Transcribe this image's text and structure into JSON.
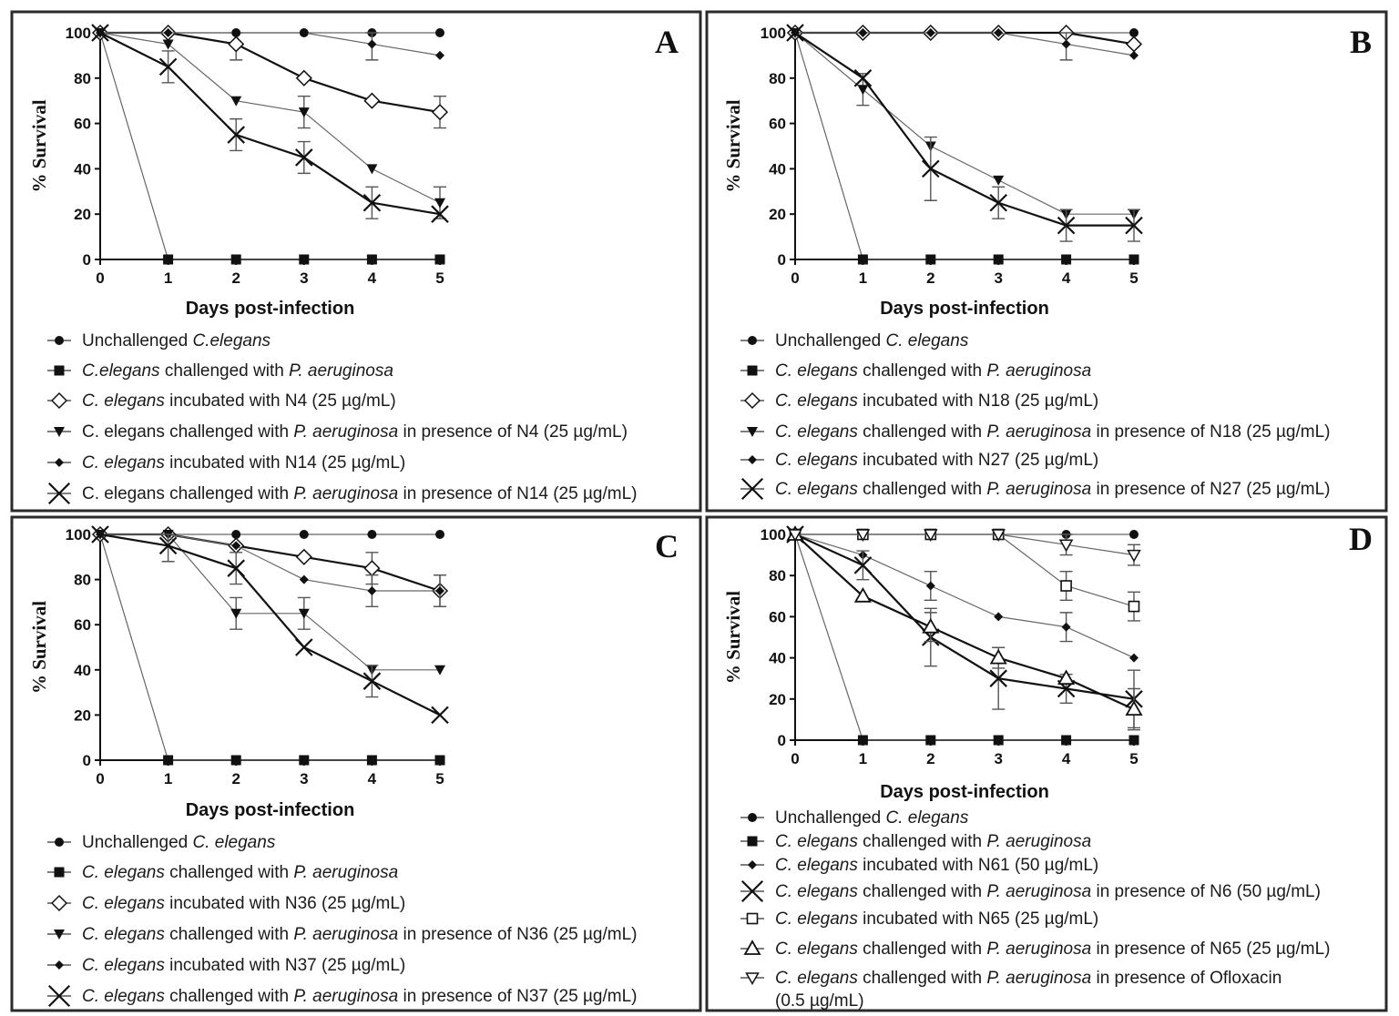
{
  "chart_data": [
    {
      "panel": "A",
      "type": "line",
      "xlabel": "Days post-infection",
      "ylabel": "% Survival",
      "xlim": [
        0,
        5
      ],
      "ylim": [
        0,
        100
      ],
      "xticks": [
        0,
        1,
        2,
        3,
        4,
        5
      ],
      "yticks": [
        0,
        20,
        40,
        60,
        80,
        100
      ],
      "legend_placement": "below",
      "x": [
        0,
        1,
        2,
        3,
        4,
        5
      ],
      "series": [
        {
          "marker": "circle",
          "weight": "thin",
          "label": [
            {
              "t": "Unchallenged "
            },
            {
              "t": "C.elegans",
              "i": true
            }
          ],
          "values": [
            100,
            100,
            100,
            100,
            100,
            100
          ],
          "err": [
            0,
            0,
            0,
            0,
            0,
            0
          ]
        },
        {
          "marker": "square",
          "weight": "thin",
          "label": [
            {
              "t": "C.elegans",
              "i": true
            },
            {
              "t": " challenged with "
            },
            {
              "t": "P. aeruginosa",
              "i": true
            }
          ],
          "values": [
            100,
            0,
            0,
            0,
            0,
            0
          ],
          "err": [
            0,
            0,
            0,
            0,
            0,
            0
          ]
        },
        {
          "marker": "diamond-open",
          "weight": "thick",
          "label": [
            {
              "t": "C. elegans",
              "i": true
            },
            {
              "t": " incubated with N4 (25 µg/mL)"
            }
          ],
          "values": [
            100,
            100,
            95,
            80,
            70,
            65
          ],
          "err": [
            0,
            0,
            7,
            0,
            0,
            7
          ]
        },
        {
          "marker": "triangle-down",
          "weight": "thin",
          "label": [
            {
              "t": "C. elegans challenged with "
            },
            {
              "t": "P. aeruginosa",
              "i": true
            },
            {
              "t": " in presence of N4 (25 µg/mL)"
            }
          ],
          "values": [
            100,
            95,
            70,
            65,
            40,
            25
          ],
          "err": [
            0,
            0,
            0,
            7,
            0,
            7
          ]
        },
        {
          "marker": "diamond",
          "weight": "thin",
          "label": [
            {
              "t": "C. elegans",
              "i": true
            },
            {
              "t": " incubated with N14 (25 µg/mL)"
            }
          ],
          "values": [
            100,
            100,
            100,
            100,
            95,
            90
          ],
          "err": [
            0,
            0,
            0,
            0,
            7,
            0
          ]
        },
        {
          "marker": "x",
          "weight": "thick",
          "label": [
            {
              "t": "C. elegans challenged with "
            },
            {
              "t": "P. aeruginosa",
              "i": true
            },
            {
              "t": " in presence of N14 (25 µg/mL)"
            }
          ],
          "values": [
            100,
            85,
            55,
            45,
            25,
            20
          ],
          "err": [
            0,
            7,
            7,
            7,
            7,
            0
          ]
        }
      ]
    },
    {
      "panel": "B",
      "type": "line",
      "xlabel": "Days post-infection",
      "ylabel": "% Survival",
      "xlim": [
        0,
        5
      ],
      "ylim": [
        0,
        100
      ],
      "xticks": [
        0,
        1,
        2,
        3,
        4,
        5
      ],
      "yticks": [
        0,
        20,
        40,
        60,
        80,
        100
      ],
      "legend_placement": "below",
      "x": [
        0,
        1,
        2,
        3,
        4,
        5
      ],
      "series": [
        {
          "marker": "circle",
          "weight": "thin",
          "label": [
            {
              "t": "Unchallenged "
            },
            {
              "t": "C. elegans",
              "i": true
            }
          ],
          "values": [
            100,
            100,
            100,
            100,
            100,
            100
          ],
          "err": [
            0,
            0,
            0,
            0,
            0,
            0
          ]
        },
        {
          "marker": "square",
          "weight": "thin",
          "label": [
            {
              "t": "C. elegans",
              "i": true
            },
            {
              "t": " challenged with "
            },
            {
              "t": "P. aeruginosa",
              "i": true
            }
          ],
          "values": [
            100,
            0,
            0,
            0,
            0,
            0
          ],
          "err": [
            0,
            0,
            0,
            0,
            0,
            0
          ]
        },
        {
          "marker": "diamond-open",
          "weight": "thick",
          "label": [
            {
              "t": "C. elegans",
              "i": true
            },
            {
              "t": " incubated with N18 (25 µg/mL)"
            }
          ],
          "values": [
            100,
            100,
            100,
            100,
            100,
            95
          ],
          "err": [
            0,
            0,
            0,
            0,
            0,
            0
          ]
        },
        {
          "marker": "triangle-down",
          "weight": "thin",
          "label": [
            {
              "t": "C. elegans",
              "i": true
            },
            {
              "t": " challenged with "
            },
            {
              "t": "P. aeruginosa",
              "i": true
            },
            {
              "t": " in presence of N18 (25 µg/mL)"
            }
          ],
          "values": [
            100,
            75,
            50,
            35,
            20,
            20
          ],
          "err": [
            0,
            7,
            0,
            0,
            0,
            0
          ]
        },
        {
          "marker": "diamond",
          "weight": "thin",
          "label": [
            {
              "t": "C. elegans",
              "i": true
            },
            {
              "t": " incubated with N27 (25 µg/mL)"
            }
          ],
          "values": [
            100,
            100,
            100,
            100,
            95,
            90
          ],
          "err": [
            0,
            0,
            0,
            0,
            7,
            0
          ]
        },
        {
          "marker": "x",
          "weight": "thick",
          "label": [
            {
              "t": "C. elegans",
              "i": true
            },
            {
              "t": " challenged with "
            },
            {
              "t": "P. aeruginosa",
              "i": true
            },
            {
              "t": " in presence of N27 (25 µg/mL)"
            }
          ],
          "values": [
            100,
            80,
            40,
            25,
            15,
            15
          ],
          "err": [
            0,
            0,
            14,
            7,
            7,
            7
          ]
        }
      ]
    },
    {
      "panel": "C",
      "type": "line",
      "xlabel": "Days post-infection",
      "ylabel": "% Survival",
      "xlim": [
        0,
        5
      ],
      "ylim": [
        0,
        100
      ],
      "xticks": [
        0,
        1,
        2,
        3,
        4,
        5
      ],
      "yticks": [
        0,
        20,
        40,
        60,
        80,
        100
      ],
      "legend_placement": "below",
      "x": [
        0,
        1,
        2,
        3,
        4,
        5
      ],
      "series": [
        {
          "marker": "circle",
          "weight": "thin",
          "label": [
            {
              "t": "Unchallenged "
            },
            {
              "t": "C. elegans",
              "i": true
            }
          ],
          "values": [
            100,
            100,
            100,
            100,
            100,
            100
          ],
          "err": [
            0,
            0,
            0,
            0,
            0,
            0
          ]
        },
        {
          "marker": "square",
          "weight": "thin",
          "label": [
            {
              "t": "C. elegans",
              "i": true
            },
            {
              "t": " challenged with "
            },
            {
              "t": "P. aeruginosa",
              "i": true
            }
          ],
          "values": [
            100,
            0,
            0,
            0,
            0,
            0
          ],
          "err": [
            0,
            0,
            0,
            0,
            0,
            0
          ]
        },
        {
          "marker": "diamond-open",
          "weight": "thick",
          "label": [
            {
              "t": "C. elegans",
              "i": true
            },
            {
              "t": " incubated with N36 (25 µg/mL)"
            }
          ],
          "values": [
            100,
            100,
            95,
            90,
            85,
            75
          ],
          "err": [
            0,
            0,
            0,
            0,
            7,
            7
          ]
        },
        {
          "marker": "triangle-down",
          "weight": "thin",
          "label": [
            {
              "t": "C. elegans",
              "i": true
            },
            {
              "t": " challenged with "
            },
            {
              "t": "P. aeruginosa",
              "i": true
            },
            {
              "t": " in presence of N36 (25 µg/mL)"
            }
          ],
          "values": [
            100,
            100,
            65,
            65,
            40,
            40
          ],
          "err": [
            0,
            0,
            7,
            7,
            0,
            0
          ]
        },
        {
          "marker": "diamond",
          "weight": "thin",
          "label": [
            {
              "t": "C. elegans",
              "i": true
            },
            {
              "t": " incubated with N37 (25 µg/mL)"
            }
          ],
          "values": [
            100,
            100,
            95,
            80,
            75,
            75
          ],
          "err": [
            0,
            0,
            0,
            0,
            7,
            7
          ]
        },
        {
          "marker": "x",
          "weight": "thick",
          "label": [
            {
              "t": "C. elegans",
              "i": true
            },
            {
              "t": " challenged with "
            },
            {
              "t": "P. aeruginosa",
              "i": true
            },
            {
              "t": " in presence of N37 (25 µg/mL)"
            }
          ],
          "values": [
            100,
            95,
            85,
            50,
            35,
            20
          ],
          "err": [
            0,
            7,
            7,
            0,
            7,
            0
          ]
        }
      ]
    },
    {
      "panel": "D",
      "type": "line",
      "xlabel": "Days post-infection",
      "ylabel": "% Survival",
      "xlim": [
        0,
        5
      ],
      "ylim": [
        0,
        100
      ],
      "xticks": [
        0,
        1,
        2,
        3,
        4,
        5
      ],
      "yticks": [
        0,
        20,
        40,
        60,
        80,
        100
      ],
      "legend_placement": "below",
      "x": [
        0,
        1,
        2,
        3,
        4,
        5
      ],
      "series": [
        {
          "marker": "circle",
          "weight": "thin",
          "label": [
            {
              "t": "Unchallenged "
            },
            {
              "t": "C. elegans",
              "i": true
            }
          ],
          "values": [
            100,
            100,
            100,
            100,
            100,
            100
          ],
          "err": [
            0,
            0,
            0,
            0,
            0,
            0
          ]
        },
        {
          "marker": "square",
          "weight": "thin",
          "label": [
            {
              "t": "C. elegans",
              "i": true
            },
            {
              "t": " challenged with "
            },
            {
              "t": "P. aeruginosa",
              "i": true
            }
          ],
          "values": [
            100,
            0,
            0,
            0,
            0,
            0
          ],
          "err": [
            0,
            0,
            0,
            0,
            0,
            0
          ]
        },
        {
          "marker": "diamond",
          "weight": "thin",
          "label": [
            {
              "t": "C. elegans",
              "i": true
            },
            {
              "t": " incubated with N61 (50 µg/mL)"
            }
          ],
          "values": [
            100,
            90,
            75,
            60,
            55,
            40
          ],
          "err": [
            0,
            0,
            7,
            0,
            7,
            0
          ]
        },
        {
          "marker": "x",
          "weight": "thick",
          "label": [
            {
              "t": "C. elegans",
              "i": true
            },
            {
              "t": " challenged with "
            },
            {
              "t": "P. aeruginosa",
              "i": true
            },
            {
              "t": " in presence of N6 (50 µg/mL)"
            }
          ],
          "values": [
            100,
            85,
            50,
            30,
            25,
            20
          ],
          "err": [
            0,
            7,
            14,
            15,
            7,
            14
          ]
        },
        {
          "marker": "square-open",
          "weight": "thin",
          "label": [
            {
              "t": "C. elegans",
              "i": true
            },
            {
              "t": " incubated with N65 (25 µg/mL)"
            }
          ],
          "values": [
            100,
            100,
            100,
            100,
            75,
            65
          ],
          "err": [
            0,
            0,
            0,
            0,
            7,
            7
          ]
        },
        {
          "marker": "triangle-open",
          "weight": "thick",
          "label": [
            {
              "t": "C. elegans",
              "i": true
            },
            {
              "t": " challenged with "
            },
            {
              "t": "P. aeruginosa",
              "i": true
            },
            {
              "t": " in presence of N65 (25 µg/mL)"
            }
          ],
          "values": [
            100,
            70,
            55,
            40,
            30,
            15
          ],
          "err": [
            0,
            0,
            7,
            5,
            0,
            10
          ]
        },
        {
          "marker": "triangle-down-open",
          "weight": "thin",
          "label": [
            {
              "t": "C. elegans",
              "i": true
            },
            {
              "t": " challenged with "
            },
            {
              "t": "P. aeruginosa",
              "i": true
            },
            {
              "t": " in presence of Ofloxacin"
            }
          ],
          "label2": [
            {
              "t": "(0.5 µg/mL)"
            }
          ],
          "values": [
            100,
            100,
            100,
            100,
            95,
            90
          ],
          "err": [
            0,
            0,
            0,
            0,
            5,
            5
          ]
        }
      ]
    }
  ]
}
